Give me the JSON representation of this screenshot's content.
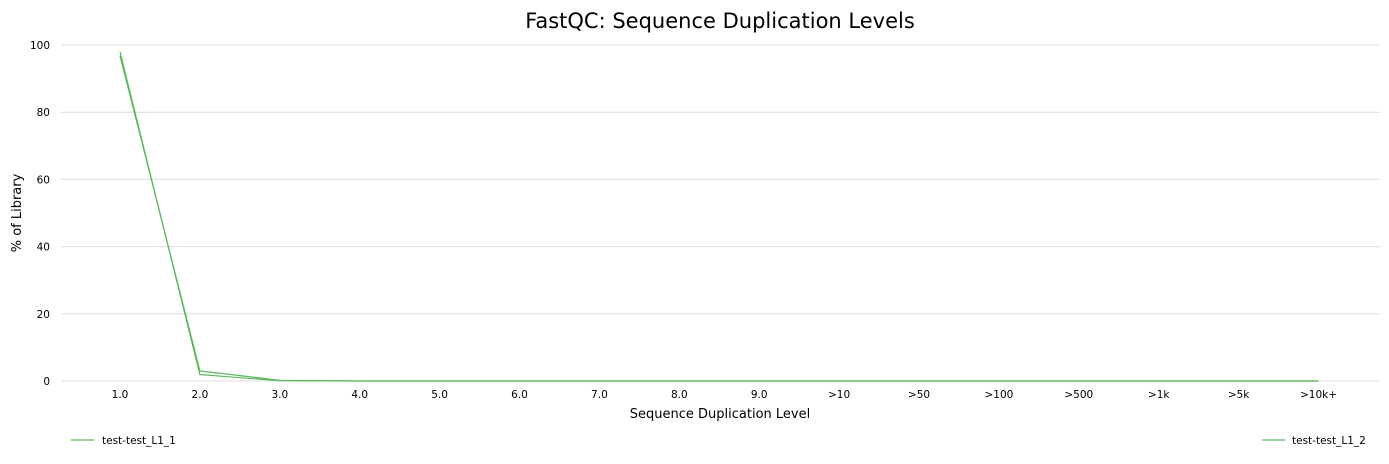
{
  "chart_data": {
    "type": "line",
    "title": "FastQC: Sequence Duplication Levels",
    "xlabel": "Sequence Duplication Level",
    "ylabel": "% of Library",
    "categories": [
      "1.0",
      "2.0",
      "3.0",
      "4.0",
      "5.0",
      "6.0",
      "7.0",
      "8.0",
      "9.0",
      ">10",
      ">50",
      ">100",
      ">500",
      ">1k",
      ">5k",
      ">10k+"
    ],
    "y_ticks": [
      "0",
      "20",
      "40",
      "60",
      "80",
      "100"
    ],
    "ylim": [
      0,
      100
    ],
    "grid": true,
    "legend_position": "bottom",
    "series": [
      {
        "name": "test-test_L1_1",
        "color": "#5cb85c",
        "values": [
          98.0,
          1.9,
          0.1,
          0.0,
          0.0,
          0.0,
          0.0,
          0.0,
          0.0,
          0.0,
          0.0,
          0.0,
          0.0,
          0.0,
          0.0,
          0.0
        ]
      },
      {
        "name": "test-test_L1_2",
        "color": "#5cb85c",
        "values": [
          96.8,
          3.0,
          0.2,
          0.0,
          0.0,
          0.0,
          0.0,
          0.0,
          0.0,
          0.0,
          0.0,
          0.0,
          0.0,
          0.0,
          0.0,
          0.0
        ]
      }
    ]
  }
}
